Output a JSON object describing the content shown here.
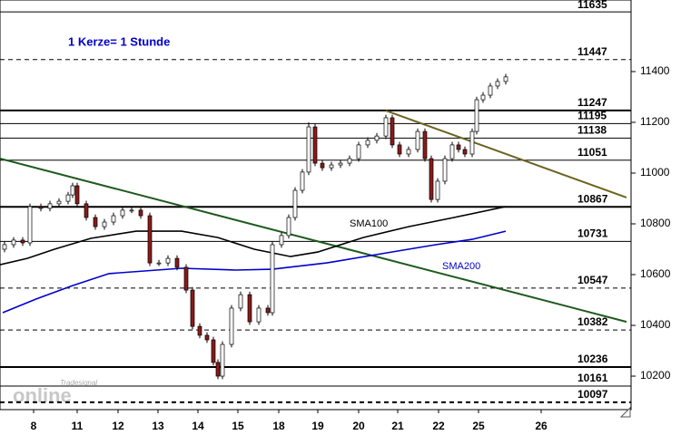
{
  "chart_data": {
    "type": "candlestick",
    "annotation": "1 Kerze= 1 Stunde",
    "logo": [
      "Tradesignal",
      "online"
    ],
    "up_color": "#ffffff",
    "down_color": "#8b1a1a",
    "x": [
      1,
      3,
      5,
      6.6,
      9,
      11,
      13,
      15,
      16,
      17,
      19,
      21,
      23,
      25,
      27,
      29,
      31,
      33,
      35,
      37,
      39,
      41,
      42.4,
      44,
      45.6,
      47,
      48,
      49,
      51,
      53,
      55,
      57,
      59,
      60,
      62,
      63.6,
      65,
      66.6,
      68,
      69.4,
      71,
      73,
      75,
      77,
      79,
      81,
      83,
      85,
      86.4,
      88,
      90,
      92,
      93.6,
      95,
      96.4,
      98,
      99.6,
      101,
      102.4,
      104,
      105,
      106.4,
      108,
      109.6,
      111.4
    ],
    "open": [
      10700,
      10718,
      10736,
      10725,
      10868,
      10861,
      10879,
      10889,
      10914,
      10950,
      10879,
      10825,
      10789,
      10807,
      10832,
      10854,
      10854,
      10832,
      10646,
      10646,
      10664,
      10629,
      10539,
      10396,
      10361,
      10343,
      10254,
      10200,
      10325,
      10468,
      10521,
      10414,
      10468,
      10450,
      10718,
      10754,
      10825,
      10932,
      11004,
      11182,
      11039,
      11021,
      11032,
      11039,
      11057,
      11111,
      11129,
      11146,
      11218,
      11111,
      11075,
      11093,
      11164,
      11057,
      10896,
      10968,
      11057,
      11111,
      11093,
      11075,
      11164,
      11289,
      11307,
      11343,
      11361
    ],
    "high": [
      10730,
      10748,
      10748,
      10880,
      10880,
      10891,
      10901,
      10926,
      10962,
      10962,
      10891,
      10837,
      10819,
      10844,
      10866,
      10866,
      10866,
      10844,
      10658,
      10676,
      10676,
      10641,
      10551,
      10408,
      10373,
      10355,
      10266,
      10337,
      10480,
      10533,
      10533,
      10480,
      10480,
      10730,
      10766,
      10837,
      10944,
      11016,
      11200,
      11194,
      11051,
      11044,
      11051,
      11069,
      11123,
      11141,
      11158,
      11230,
      11230,
      11123,
      11105,
      11176,
      11176,
      11069,
      10980,
      11069,
      11123,
      11123,
      11105,
      11176,
      11301,
      11319,
      11355,
      11373,
      11391
    ],
    "low": [
      10688,
      10706,
      10713,
      10713,
      10849,
      10849,
      10867,
      10877,
      10902,
      10867,
      10813,
      10777,
      10777,
      10795,
      10820,
      10842,
      10820,
      10634,
      10634,
      10634,
      10617,
      10527,
      10384,
      10349,
      10331,
      10242,
      10188,
      10188,
      10313,
      10456,
      10402,
      10402,
      10438,
      10438,
      10706,
      10742,
      10813,
      10920,
      10992,
      11027,
      11009,
      11009,
      11020,
      11027,
      11045,
      11099,
      11117,
      11134,
      11099,
      11063,
      11063,
      11081,
      11045,
      10884,
      10884,
      10956,
      11045,
      11081,
      11063,
      11063,
      11152,
      11277,
      11295,
      11331,
      11349
    ],
    "close": [
      10718,
      10736,
      10725,
      10868,
      10861,
      10879,
      10889,
      10914,
      10950,
      10879,
      10825,
      10789,
      10807,
      10832,
      10854,
      10854,
      10832,
      10646,
      10646,
      10664,
      10629,
      10539,
      10396,
      10361,
      10343,
      10254,
      10200,
      10325,
      10468,
      10521,
      10414,
      10468,
      10450,
      10718,
      10754,
      10825,
      10932,
      11004,
      11182,
      11039,
      11021,
      11032,
      11039,
      11057,
      11111,
      11129,
      11146,
      11218,
      11111,
      11075,
      11093,
      11164,
      11057,
      10896,
      10968,
      11057,
      11111,
      11093,
      11075,
      11164,
      11289,
      11307,
      11343,
      11361,
      11379
    ],
    "lines": [
      {
        "name": "SMA100",
        "color": "#000000",
        "x": [
          0,
          6,
          12,
          20,
          30,
          40,
          48,
          56,
          64,
          70,
          80,
          90,
          100,
          111.4
        ],
        "values": [
          10639,
          10664,
          10700,
          10743,
          10771,
          10771,
          10746,
          10700,
          10671,
          10689,
          10746,
          10789,
          10825,
          10868
        ]
      },
      {
        "name": "SMA200",
        "color": "#0000cc",
        "x": [
          0.6,
          8,
          16,
          24,
          40,
          52,
          60,
          72,
          84,
          96,
          104,
          111.4
        ],
        "values": [
          10450,
          10504,
          10557,
          10604,
          10625,
          10618,
          10621,
          10646,
          10682,
          10718,
          10739,
          10771
        ]
      }
    ],
    "trendlines": [
      {
        "color": "#1f5a1f",
        "x": [
          0,
          138
        ],
        "values": [
          11057,
          10414
        ]
      },
      {
        "color": "#6b6420",
        "x": [
          85,
          138
        ],
        "values": [
          11246,
          10904
        ]
      }
    ],
    "levels": [
      {
        "value": 11635,
        "style": "solid"
      },
      {
        "value": 11447,
        "style": "dashed"
      },
      {
        "value": 11247,
        "style": "thick"
      },
      {
        "value": 11195,
        "style": "solid"
      },
      {
        "value": 11138,
        "style": "solid"
      },
      {
        "value": 11051,
        "style": "solid"
      },
      {
        "value": 10867,
        "style": "thick"
      },
      {
        "value": 10731,
        "style": "solid"
      },
      {
        "value": 10547,
        "style": "dashed"
      },
      {
        "value": 10382,
        "style": "dashed"
      },
      {
        "value": 10236,
        "style": "thick"
      },
      {
        "value": 10161,
        "style": "solid"
      },
      {
        "value": 10097,
        "style": "thick-dashed"
      }
    ],
    "xlim": [
      0,
      139
    ],
    "xticks": [
      {
        "value": 7.4,
        "label": "8"
      },
      {
        "value": 17,
        "label": "11"
      },
      {
        "value": 26,
        "label": "12"
      },
      {
        "value": 34.8,
        "label": "13"
      },
      {
        "value": 43.6,
        "label": "14"
      },
      {
        "value": 52.4,
        "label": "15"
      },
      {
        "value": 61.4,
        "label": "18"
      },
      {
        "value": 70,
        "label": "19"
      },
      {
        "value": 79,
        "label": "20"
      },
      {
        "value": 87.6,
        "label": "21"
      },
      {
        "value": 96.6,
        "label": "22"
      },
      {
        "value": 105.4,
        "label": "25"
      },
      {
        "value": 119.2,
        "label": "26"
      }
    ],
    "ylim": [
      10068,
      11682
    ],
    "yticks": [
      10200,
      10400,
      10600,
      10800,
      11000,
      11200,
      11400
    ]
  }
}
